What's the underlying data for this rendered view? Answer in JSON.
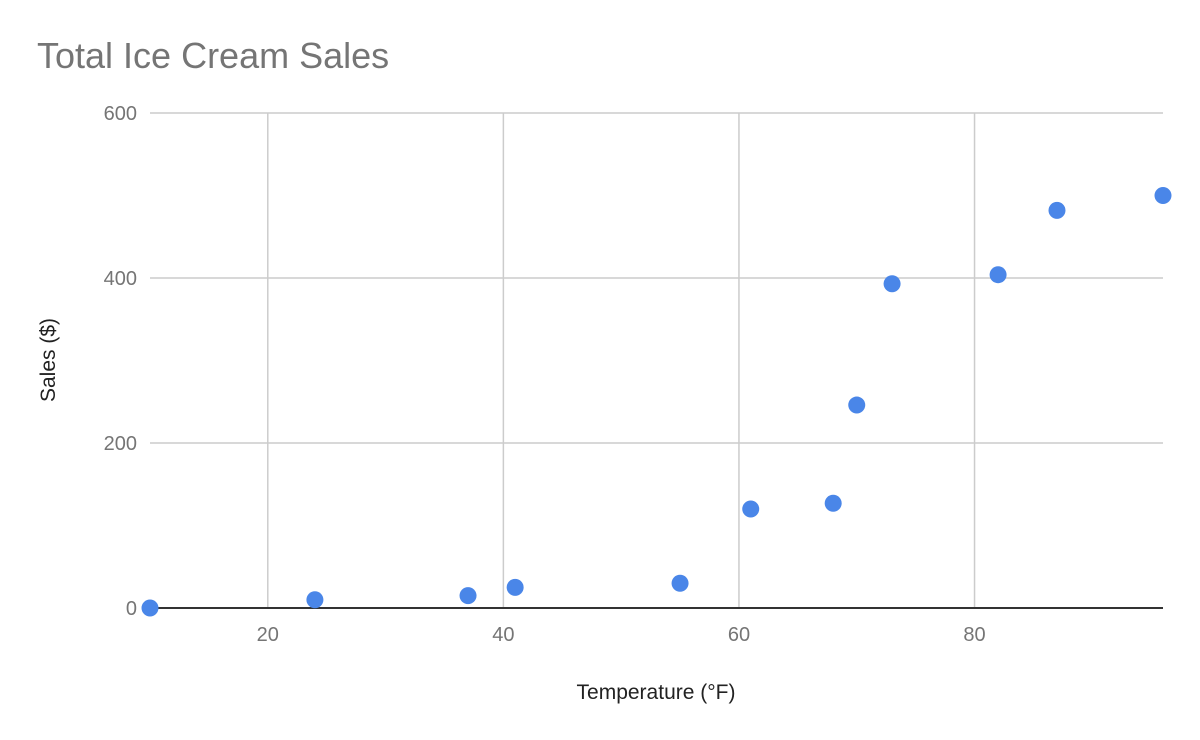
{
  "chart_data": {
    "type": "scatter",
    "title": "Total Ice Cream Sales",
    "xlabel": "Temperature (°F)",
    "ylabel": "Sales ($)",
    "xlim": [
      10,
      96
    ],
    "ylim": [
      0,
      600
    ],
    "x_ticks": [
      20,
      40,
      60,
      80
    ],
    "y_ticks": [
      0,
      200,
      400,
      600
    ],
    "grid": true,
    "legend": "none",
    "color": "#4a86e8",
    "points": [
      {
        "x": 10,
        "y": 0
      },
      {
        "x": 24,
        "y": 10
      },
      {
        "x": 37,
        "y": 15
      },
      {
        "x": 41,
        "y": 25
      },
      {
        "x": 55,
        "y": 30
      },
      {
        "x": 61,
        "y": 120
      },
      {
        "x": 68,
        "y": 127
      },
      {
        "x": 70,
        "y": 246
      },
      {
        "x": 73,
        "y": 393
      },
      {
        "x": 82,
        "y": 404
      },
      {
        "x": 87,
        "y": 482
      },
      {
        "x": 96,
        "y": 500
      }
    ]
  }
}
